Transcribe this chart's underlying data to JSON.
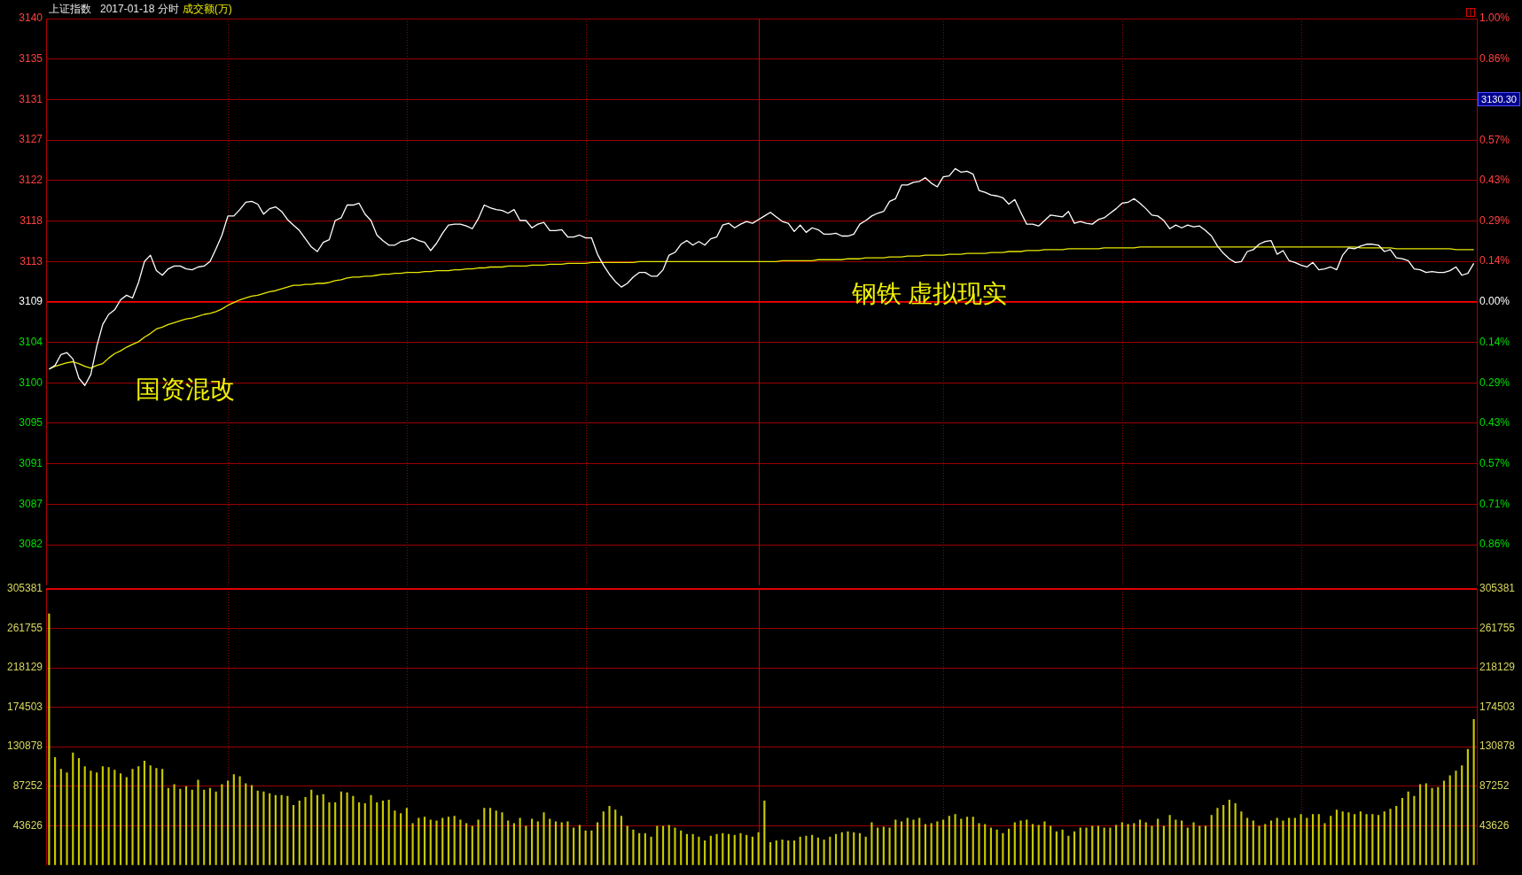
{
  "chart_data": [
    {
      "type": "line",
      "title": "上证指数",
      "subtitle": "2017-01-18 分时",
      "annotations": [
        "成交额(万)",
        "国资混改",
        "钢铁 虚拟现实",
        "3130.30"
      ],
      "categories": [
        null,
        null,
        null,
        null,
        null,
        null,
        null,
        null,
        null,
        null,
        null,
        null,
        null,
        null,
        null,
        null,
        null,
        null,
        null,
        null,
        null,
        null,
        null,
        null,
        null,
        null,
        null,
        null,
        null,
        null,
        null,
        null,
        null,
        null,
        null,
        null,
        null,
        null,
        null,
        null,
        null,
        null,
        null,
        null,
        null,
        null,
        null,
        null,
        null,
        null,
        null,
        null,
        null,
        null,
        null,
        null,
        null,
        null,
        null,
        null,
        null,
        null,
        null,
        null,
        null,
        null,
        null,
        null,
        null,
        null,
        null,
        null,
        null,
        null,
        null,
        null,
        null,
        null,
        null,
        null,
        null,
        null,
        null,
        null,
        null,
        null,
        null,
        null,
        null,
        null,
        null,
        null,
        null,
        null,
        null,
        null,
        null,
        null,
        null,
        null,
        null,
        null,
        null,
        null,
        null,
        null,
        null,
        null,
        null,
        null,
        null,
        null,
        null,
        null,
        null,
        null,
        null,
        null,
        null,
        null,
        null,
        null,
        null,
        null,
        null,
        null,
        null,
        null,
        null,
        null,
        null,
        null,
        null,
        null,
        null,
        null,
        null,
        null,
        null,
        null,
        null,
        null,
        null,
        null,
        null,
        null,
        null,
        null,
        null,
        null,
        null,
        null,
        null,
        null,
        null,
        null,
        null,
        null,
        null,
        null,
        null,
        null,
        null,
        null,
        null,
        null,
        null,
        null,
        null,
        null,
        null,
        null,
        null,
        null,
        null,
        null,
        null,
        null,
        null,
        null,
        null,
        null,
        null,
        null,
        null,
        null,
        null,
        null,
        null,
        null,
        null,
        null,
        null,
        null,
        null,
        null,
        null,
        null,
        null,
        null,
        null,
        null,
        null,
        null,
        null,
        null,
        null,
        null,
        null,
        null,
        null,
        null,
        null,
        null,
        null,
        null,
        null,
        null,
        null,
        null,
        null,
        null,
        null,
        null,
        null,
        null,
        null,
        null,
        null,
        null,
        null,
        null,
        null,
        null,
        null,
        null,
        null,
        null,
        null,
        null
      ],
      "ylim": [
        3077.68,
        3139.86
      ],
      "yticks": [
        {
          "value": 3139.86,
          "label": "3140"
        },
        {
          "value": 3135.42,
          "label": "3135"
        },
        {
          "value": 3130.97,
          "label": "3131"
        },
        {
          "value": 3126.53,
          "label": "3127"
        },
        {
          "value": 3122.09,
          "label": "3122"
        },
        {
          "value": 3117.65,
          "label": "3118"
        },
        {
          "value": 3113.21,
          "label": "3113"
        },
        {
          "value": 3108.77,
          "label": "3109"
        },
        {
          "value": 3104.33,
          "label": "3104"
        },
        {
          "value": 3099.89,
          "label": "3100"
        },
        {
          "value": 3095.45,
          "label": "3095"
        },
        {
          "value": 3091.01,
          "label": "3091"
        },
        {
          "value": 3086.57,
          "label": "3087"
        },
        {
          "value": 3082.13,
          "label": "3082"
        }
      ],
      "y2lim": [
        -1,
        1
      ],
      "y2ticks": [
        {
          "value": 1,
          "label": "1.00%"
        },
        {
          "value": 0.857,
          "label": "0.86%"
        },
        {
          "value": 0.571,
          "label": "0.57%"
        },
        {
          "value": 0.429,
          "label": "0.43%"
        },
        {
          "value": 0.286,
          "label": "0.29%"
        },
        {
          "value": 0.143,
          "label": "0.14%"
        },
        {
          "value": 0,
          "label": "0.00%"
        },
        {
          "value": -0.143,
          "label": "0.14%"
        },
        {
          "value": -0.286,
          "label": "0.29%"
        },
        {
          "value": -0.429,
          "label": "0.43%"
        },
        {
          "value": -0.571,
          "label": "0.57%"
        },
        {
          "value": -0.714,
          "label": "0.71%"
        },
        {
          "value": -0.857,
          "label": "0.86%"
        }
      ],
      "series": [
        {
          "color": "#ffffff",
          "values": [
            3101.4,
            3101.8,
            3103.0,
            3103.2,
            3102.5,
            3100.4,
            3099.6,
            3100.8,
            3103.9,
            3106.3,
            3107.4,
            3107.9,
            3109.0,
            3109.5,
            3109.2,
            3110.9,
            3113.2,
            3113.9,
            3112.2,
            3111.7,
            3112.4,
            3112.7,
            3112.7,
            3112.4,
            3112.3,
            3112.6,
            3112.7,
            3113.2,
            3114.6,
            3116.1,
            3118.2,
            3118.2,
            3118.9,
            3119.7,
            3119.8,
            3119.5,
            3118.4,
            3119.0,
            3119.2,
            3118.7,
            3117.8,
            3117.2,
            3116.6,
            3115.7,
            3114.8,
            3114.3,
            3115.3,
            3115.6,
            3117.7,
            3118.0,
            3119.4,
            3119.4,
            3119.6,
            3118.4,
            3117.7,
            3116.1,
            3115.5,
            3115.0,
            3115.0,
            3115.4,
            3115.5,
            3115.8,
            3115.5,
            3115.3,
            3114.4,
            3115.2,
            3116.3,
            3117.2,
            3117.3,
            3117.3,
            3117.1,
            3116.8,
            3117.9,
            3119.4,
            3119.1,
            3118.9,
            3118.8,
            3118.5,
            3118.9,
            3117.7,
            3117.7,
            3116.9,
            3117.3,
            3117.5,
            3116.6,
            3116.6,
            3116.7,
            3115.9,
            3115.9,
            3116.1,
            3115.8,
            3115.8,
            3114.0,
            3112.8,
            3111.8,
            3111.0,
            3110.4,
            3110.8,
            3111.5,
            3112.0,
            3112.0,
            3111.6,
            3111.6,
            3112.3,
            3113.9,
            3114.2,
            3115.1,
            3115.5,
            3115.0,
            3115.4,
            3115.0,
            3115.7,
            3115.9,
            3117.2,
            3117.4,
            3116.9,
            3117.3,
            3117.6,
            3117.4,
            3117.8,
            3118.2,
            3118.6,
            3118.1,
            3117.6,
            3117.4,
            3116.5,
            3117.2,
            3116.4,
            3116.9,
            3116.7,
            3116.2,
            3116.2,
            3116.3,
            3116.0,
            3116.0,
            3116.2,
            3117.3,
            3117.7,
            3118.2,
            3118.5,
            3118.7,
            3119.8,
            3120.1,
            3121.6,
            3121.6,
            3121.9,
            3122.0,
            3122.4,
            3121.8,
            3121.4,
            3122.5,
            3122.6,
            3123.4,
            3123.0,
            3123.1,
            3122.8,
            3121.0,
            3120.8,
            3120.5,
            3120.4,
            3120.2,
            3119.5,
            3120.0,
            3118.6,
            3117.3,
            3117.3,
            3117.1,
            3117.7,
            3118.3,
            3118.2,
            3118.1,
            3118.7,
            3117.4,
            3117.6,
            3117.4,
            3117.3,
            3117.8,
            3118.0,
            3118.5,
            3119.0,
            3119.6,
            3119.7,
            3120.1,
            3119.6,
            3119.0,
            3118.3,
            3118.2,
            3117.7,
            3116.8,
            3117.2,
            3116.9,
            3117.2,
            3117.0,
            3117.1,
            3116.6,
            3116.0,
            3114.9,
            3114.1,
            3113.5,
            3113.1,
            3113.2,
            3114.3,
            3114.5,
            3115.1,
            3115.4,
            3115.5,
            3114.0,
            3114.4,
            3113.3,
            3113.1,
            3112.8,
            3112.6,
            3113.1,
            3112.3,
            3112.4,
            3112.6,
            3112.3,
            3113.9,
            3114.7,
            3114.6,
            3114.9,
            3115.1,
            3115.1,
            3115.0,
            3114.3,
            3114.5,
            3113.6,
            3113.5,
            3113.3,
            3112.4,
            3112.3,
            3112.0,
            3112.1,
            3112.0,
            3112.0,
            3112.2,
            3112.6,
            3111.7,
            3111.9,
            3113.0
          ]
        },
        {
          "color": "#e8e800",
          "values": [
            3101.4,
            3101.7,
            3101.9,
            3102.1,
            3102.2,
            3102.0,
            3101.7,
            3101.5,
            3101.8,
            3102.0,
            3102.6,
            3103.1,
            3103.4,
            3103.8,
            3104.1,
            3104.4,
            3104.9,
            3105.3,
            3105.8,
            3106.0,
            3106.3,
            3106.5,
            3106.7,
            3106.9,
            3107.0,
            3107.2,
            3107.4,
            3107.5,
            3107.7,
            3108.0,
            3108.4,
            3108.7,
            3109.0,
            3109.2,
            3109.4,
            3109.5,
            3109.7,
            3109.9,
            3110.0,
            3110.2,
            3110.4,
            3110.6,
            3110.6,
            3110.7,
            3110.7,
            3110.8,
            3110.8,
            3110.9,
            3111.1,
            3111.2,
            3111.4,
            3111.5,
            3111.5,
            3111.6,
            3111.6,
            3111.7,
            3111.8,
            3111.8,
            3111.9,
            3111.9,
            3112.0,
            3112.0,
            3112.0,
            3112.1,
            3112.1,
            3112.2,
            3112.2,
            3112.2,
            3112.3,
            3112.3,
            3112.4,
            3112.4,
            3112.5,
            3112.5,
            3112.6,
            3112.6,
            3112.6,
            3112.7,
            3112.7,
            3112.7,
            3112.7,
            3112.8,
            3112.8,
            3112.8,
            3112.9,
            3112.9,
            3112.9,
            3113.0,
            3113.0,
            3113.0,
            3113.0,
            3113.1,
            3113.1,
            3113.1,
            3113.1,
            3113.1,
            3113.1,
            3113.1,
            3113.1,
            3113.2,
            3113.2,
            3113.2,
            3113.2,
            3113.2,
            3113.2,
            3113.2,
            3113.2,
            3113.2,
            3113.2,
            3113.2,
            3113.2,
            3113.2,
            3113.2,
            3113.2,
            3113.2,
            3113.2,
            3113.2,
            3113.2,
            3113.2,
            3113.2,
            3113.2,
            3113.2,
            3113.2,
            3113.3,
            3113.3,
            3113.3,
            3113.3,
            3113.3,
            3113.3,
            3113.4,
            3113.4,
            3113.4,
            3113.4,
            3113.4,
            3113.5,
            3113.5,
            3113.5,
            3113.6,
            3113.6,
            3113.6,
            3113.6,
            3113.7,
            3113.7,
            3113.7,
            3113.8,
            3113.8,
            3113.8,
            3113.9,
            3113.9,
            3113.9,
            3113.9,
            3114.0,
            3114.0,
            3114.0,
            3114.1,
            3114.1,
            3114.1,
            3114.1,
            3114.2,
            3114.2,
            3114.2,
            3114.3,
            3114.3,
            3114.3,
            3114.4,
            3114.4,
            3114.4,
            3114.5,
            3114.5,
            3114.5,
            3114.5,
            3114.6,
            3114.6,
            3114.6,
            3114.6,
            3114.6,
            3114.6,
            3114.7,
            3114.7,
            3114.7,
            3114.7,
            3114.7,
            3114.7,
            3114.8,
            3114.8,
            3114.8,
            3114.8,
            3114.8,
            3114.8,
            3114.8,
            3114.8,
            3114.8,
            3114.8,
            3114.8,
            3114.8,
            3114.8,
            3114.8,
            3114.8,
            3114.8,
            3114.8,
            3114.8,
            3114.8,
            3114.8,
            3114.8,
            3114.8,
            3114.8,
            3114.8,
            3114.8,
            3114.8,
            3114.8,
            3114.8,
            3114.8,
            3114.8,
            3114.8,
            3114.8,
            3114.8,
            3114.8,
            3114.8,
            3114.8,
            3114.8,
            3114.7,
            3114.7,
            3114.7,
            3114.7,
            3114.7,
            3114.7,
            3114.6,
            3114.6,
            3114.6,
            3114.6,
            3114.6,
            3114.6,
            3114.6,
            3114.6,
            3114.6,
            3114.6,
            3114.5,
            3114.5,
            3114.5,
            3114.5
          ]
        }
      ],
      "grid": true,
      "tick_labels": "y",
      "ref_lines": [
        {
          "axis": "y",
          "value": 3108.77,
          "color": "#ff0000"
        }
      ]
    },
    {
      "type": "bar",
      "color": "#c8c800",
      "categories": [
        null,
        null,
        null,
        null,
        null,
        null,
        null,
        null,
        null,
        null,
        null,
        null,
        null,
        null,
        null,
        null,
        null,
        null,
        null,
        null,
        null,
        null,
        null,
        null,
        null,
        null,
        null,
        null,
        null,
        null,
        null,
        null,
        null,
        null,
        null,
        null,
        null,
        null,
        null,
        null,
        null,
        null,
        null,
        null,
        null,
        null,
        null,
        null,
        null,
        null,
        null,
        null,
        null,
        null,
        null,
        null,
        null,
        null,
        null,
        null,
        null,
        null,
        null,
        null,
        null,
        null,
        null,
        null,
        null,
        null,
        null,
        null,
        null,
        null,
        null,
        null,
        null,
        null,
        null,
        null,
        null,
        null,
        null,
        null,
        null,
        null,
        null,
        null,
        null,
        null,
        null,
        null,
        null,
        null,
        null,
        null,
        null,
        null,
        null,
        null,
        null,
        null,
        null,
        null,
        null,
        null,
        null,
        null,
        null,
        null,
        null,
        null,
        null,
        null,
        null,
        null,
        null,
        null,
        null,
        null,
        null,
        null,
        null,
        null,
        null,
        null,
        null,
        null,
        null,
        null,
        null,
        null,
        null,
        null,
        null,
        null,
        null,
        null,
        null,
        null,
        null,
        null,
        null,
        null,
        null,
        null,
        null,
        null,
        null,
        null,
        null,
        null,
        null,
        null,
        null,
        null,
        null,
        null,
        null,
        null,
        null,
        null,
        null,
        null,
        null,
        null,
        null,
        null,
        null,
        null,
        null,
        null,
        null,
        null,
        null,
        null,
        null,
        null,
        null,
        null,
        null,
        null,
        null,
        null,
        null,
        null,
        null,
        null,
        null,
        null,
        null,
        null,
        null,
        null,
        null,
        null,
        null,
        null,
        null,
        null,
        null,
        null,
        null,
        null,
        null,
        null,
        null,
        null,
        null,
        null,
        null,
        null,
        null,
        null,
        null,
        null,
        null,
        null,
        null,
        null,
        null,
        null,
        null,
        null,
        null,
        null,
        null,
        null,
        null,
        null,
        null,
        null,
        null,
        null,
        null,
        null,
        null,
        null,
        null,
        null
      ],
      "values": [
        278000,
        119000,
        106000,
        102000,
        124000,
        118000,
        109000,
        104000,
        102000,
        109000,
        108000,
        105000,
        101000,
        97000,
        106000,
        109000,
        115000,
        110000,
        107000,
        106000,
        85000,
        89000,
        84000,
        87000,
        83000,
        94000,
        83000,
        85000,
        81000,
        89000,
        93000,
        100000,
        98000,
        90000,
        88000,
        82000,
        81000,
        79000,
        77000,
        77000,
        76000,
        66000,
        71000,
        75000,
        83000,
        77000,
        78000,
        69000,
        69000,
        81000,
        80000,
        76000,
        69000,
        68000,
        77000,
        69000,
        71000,
        72000,
        60000,
        57000,
        63000,
        46000,
        52000,
        53000,
        50000,
        49000,
        52000,
        53000,
        54000,
        50000,
        46000,
        43000,
        50000,
        63000,
        63000,
        60000,
        58000,
        49000,
        46000,
        52000,
        43000,
        51000,
        48000,
        58000,
        51000,
        48000,
        47000,
        48000,
        41000,
        44000,
        38000,
        38000,
        47000,
        59000,
        65000,
        61000,
        54000,
        43000,
        39000,
        35000,
        35000,
        31000,
        43000,
        43000,
        44000,
        41000,
        38000,
        34000,
        34000,
        31000,
        27000,
        32000,
        34000,
        35000,
        34000,
        33000,
        35000,
        33000,
        31000,
        36000,
        71000,
        25000,
        27000,
        28000,
        27000,
        27000,
        31000,
        32000,
        33000,
        30000,
        28000,
        31000,
        34000,
        36000,
        37000,
        36000,
        35000,
        31000,
        47000,
        41000,
        42000,
        41000,
        50000,
        48000,
        52000,
        50000,
        52000,
        45000,
        46000,
        48000,
        50000,
        54000,
        56000,
        51000,
        53000,
        53000,
        46000,
        45000,
        41000,
        39000,
        35000,
        40000,
        47000,
        49000,
        50000,
        45000,
        44000,
        48000,
        43000,
        37000,
        39000,
        32000,
        37000,
        41000,
        41000,
        43000,
        43000,
        41000,
        41000,
        44000,
        47000,
        45000,
        46000,
        50000,
        47000,
        43000,
        51000,
        43000,
        55000,
        50000,
        49000,
        41000,
        47000,
        43000,
        43000,
        55000,
        63000,
        66000,
        72000,
        68000,
        59000,
        52000,
        49000,
        43000,
        45000,
        49000,
        52000,
        49000,
        52000,
        52000,
        56000,
        52000,
        56000,
        56000,
        46000,
        54000,
        61000,
        59000,
        58000,
        56000,
        59000,
        56000,
        56000,
        55000,
        59000,
        62000,
        65000,
        74000,
        81000,
        76000,
        89000,
        90000,
        85000,
        86000,
        93000,
        99000,
        104000,
        110000,
        128000,
        161000
      ],
      "ylim": [
        0,
        305381
      ],
      "yticks": [
        43626,
        87252,
        130878,
        174503,
        218129,
        261755,
        305381
      ],
      "y2lim": [
        0,
        305381
      ],
      "y2ticks": [
        43626,
        87252,
        130878,
        174503,
        218129,
        261755,
        305381
      ],
      "grid": true,
      "tick_labels": "y"
    }
  ]
}
